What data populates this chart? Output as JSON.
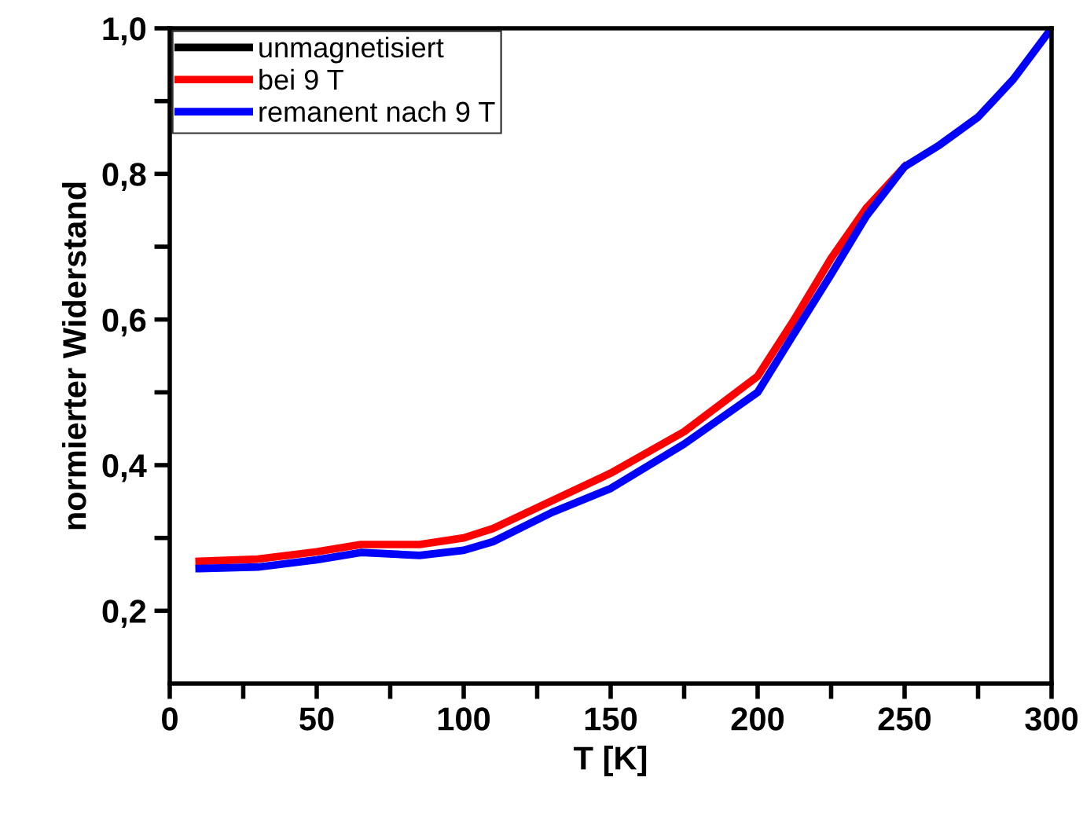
{
  "chart_data": {
    "type": "line",
    "xlabel": "T [K]",
    "ylabel": "normierter Widerstand",
    "x": [
      10,
      30,
      50,
      65,
      85,
      100,
      110,
      130,
      150,
      175,
      200,
      212,
      225,
      237,
      250,
      262,
      275,
      287,
      300
    ],
    "series": [
      {
        "name": "unmagnetisiert",
        "color": "#000000",
        "values": [
          null,
          null,
          null,
          null,
          null,
          null,
          null,
          null,
          null,
          null,
          null,
          null,
          null,
          null,
          null,
          null,
          null,
          null,
          null
        ]
      },
      {
        "name": "bei 9 T",
        "color": "#ff0000",
        "values": [
          0.268,
          0.271,
          0.281,
          0.291,
          0.291,
          0.3,
          0.313,
          0.351,
          0.389,
          0.446,
          0.522,
          0.597,
          0.684,
          0.753,
          0.81,
          null,
          null,
          null,
          null
        ]
      },
      {
        "name": "remanent nach 9 T",
        "color": "#0000ff",
        "values": [
          0.258,
          0.26,
          0.27,
          0.28,
          0.276,
          0.283,
          0.295,
          0.335,
          0.368,
          0.429,
          0.5,
          0.578,
          0.662,
          0.742,
          0.81,
          0.84,
          0.878,
          0.93,
          1.0
        ]
      }
    ],
    "xlim": [
      0,
      300
    ],
    "ylim": [
      0.1,
      1.0
    ],
    "xticks": [
      0,
      {
        "value": 25,
        "label": null
      },
      50,
      {
        "value": 75,
        "label": null
      },
      100,
      {
        "value": 125,
        "label": null
      },
      150,
      {
        "value": 175,
        "label": null
      },
      200,
      {
        "value": 225,
        "label": null
      },
      250,
      {
        "value": 275,
        "label": null
      },
      300
    ],
    "yticks": [
      {
        "value": 0.2,
        "label": "0,2"
      },
      {
        "value": 0.3,
        "label": null
      },
      {
        "value": 0.4,
        "label": "0,4"
      },
      {
        "value": 0.5,
        "label": null
      },
      {
        "value": 0.6,
        "label": "0,6"
      },
      {
        "value": 0.7,
        "label": null
      },
      {
        "value": 0.8,
        "label": "0,8"
      },
      {
        "value": 0.9,
        "label": null
      },
      {
        "value": 1.0,
        "label": "1,0"
      }
    ],
    "grid": false,
    "legend": "top left",
    "marker": "none",
    "line_style": "solid"
  }
}
